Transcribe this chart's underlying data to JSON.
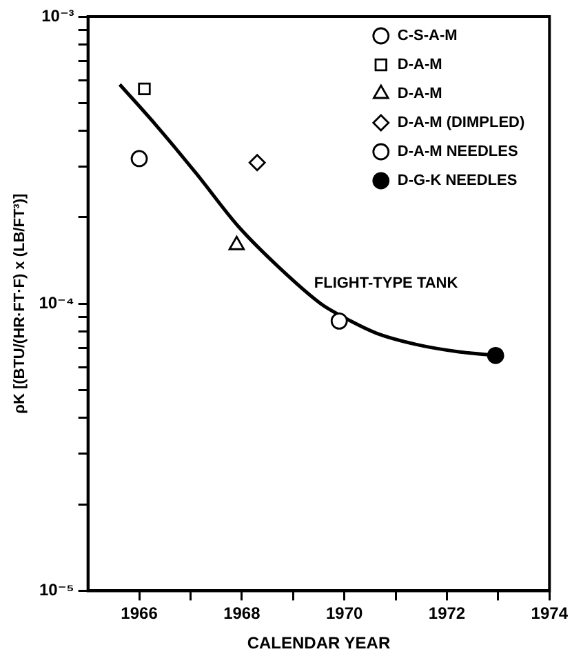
{
  "chart_data": {
    "type": "scatter",
    "xlabel": "CALENDAR YEAR",
    "ylabel": "ρK [(BTU/(HR·FT·F) x (LB/FT³)]",
    "xlim": [
      1965,
      1974
    ],
    "xticks": [
      {
        "value": 1966,
        "label": "1966"
      },
      {
        "value": 1967,
        "label": null
      },
      {
        "value": 1968,
        "label": "1968"
      },
      {
        "value": 1969,
        "label": null
      },
      {
        "value": 1970,
        "label": "1970"
      },
      {
        "value": 1971,
        "label": null
      },
      {
        "value": 1972,
        "label": "1972"
      },
      {
        "value": 1973,
        "label": null
      },
      {
        "value": 1974,
        "label": "1974"
      }
    ],
    "ylim": [
      1e-05,
      0.001
    ],
    "yticks": [
      {
        "value": 1e-05,
        "label": "10⁻⁵"
      },
      {
        "value": 2e-05,
        "label": null
      },
      {
        "value": 3e-05,
        "label": null
      },
      {
        "value": 4e-05,
        "label": null
      },
      {
        "value": 5e-05,
        "label": null
      },
      {
        "value": 6e-05,
        "label": null
      },
      {
        "value": 7e-05,
        "label": null
      },
      {
        "value": 8e-05,
        "label": null
      },
      {
        "value": 9e-05,
        "label": null
      },
      {
        "value": 0.0001,
        "label": "10⁻⁴"
      },
      {
        "value": 0.0002,
        "label": null
      },
      {
        "value": 0.0003,
        "label": null
      },
      {
        "value": 0.0004,
        "label": null
      },
      {
        "value": 0.0005,
        "label": null
      },
      {
        "value": 0.0006,
        "label": null
      },
      {
        "value": 0.0007,
        "label": null
      },
      {
        "value": 0.0008,
        "label": null
      },
      {
        "value": 0.0009,
        "label": null
      },
      {
        "value": 0.001,
        "label": "10⁻³"
      }
    ],
    "log": "y",
    "grid": false,
    "legend": "top right",
    "series": [
      {
        "name": "C-S-A-M",
        "color": "#000000",
        "marker": "circle",
        "x": [
          1966.0
        ],
        "values": [
          0.00032
        ]
      },
      {
        "name": "D-A-M",
        "color": "#000000",
        "marker": "square",
        "x": [
          1966.1
        ],
        "values": [
          0.00056
        ]
      },
      {
        "name": "D-A-M",
        "color": "#000000",
        "marker": "triangle",
        "x": [
          1967.9
        ],
        "values": [
          0.00016
        ]
      },
      {
        "name": "D-A-M (DIMPLED)",
        "color": "#000000",
        "marker": "diamond",
        "x": [
          1968.3
        ],
        "values": [
          0.00031
        ]
      },
      {
        "name": "D-A-M NEEDLES",
        "color": "#000000",
        "marker": "circle",
        "x": [
          1969.9
        ],
        "values": [
          8.7e-05
        ]
      },
      {
        "name": "D-G-K NEEDLES",
        "color": "#000000",
        "marker": "circle",
        "x": [
          1972.95
        ],
        "values": [
          6.6e-05
        ]
      },
      {
        "type": "line",
        "color": "#000000",
        "marker": "none",
        "line_style": "solid",
        "x": [
          1965.62,
          1966.32,
          1967.12,
          1967.93,
          1968.74,
          1969.54,
          1969.92,
          1970.62,
          1971.42,
          1972.23,
          1972.98
        ],
        "values": [
          0.00058,
          0.00042,
          0.000283,
          0.000186,
          0.000133,
          0.0001,
          9.1e-05,
          7.9e-05,
          7.2e-05,
          6.8e-05,
          6.6e-05
        ]
      }
    ],
    "annotations": [
      "FLIGHT-TYPE TANK"
    ]
  }
}
